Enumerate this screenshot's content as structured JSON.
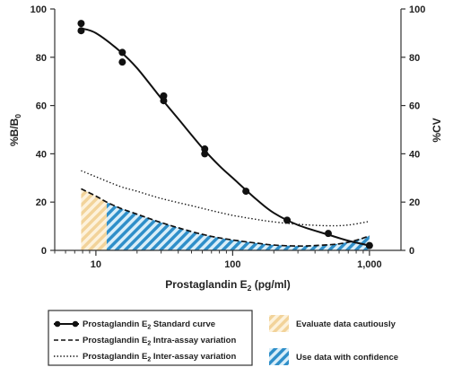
{
  "chart_data": {
    "type": "line",
    "xlabel": {
      "prefix": "Prostaglandin E",
      "sub": "2",
      "suffix": " (pg/ml)"
    },
    "ylabel_left": {
      "prefix": "%B/B",
      "sub": "0"
    },
    "ylabel_right": "%CV",
    "x_scale": "log",
    "xlim": [
      5,
      1700
    ],
    "x_ticks": [
      10,
      100,
      1000
    ],
    "x_tick_labels": [
      "10",
      "100",
      "1,000"
    ],
    "ylim": [
      0,
      100
    ],
    "y_ticks": [
      0,
      20,
      40,
      60,
      80,
      100
    ],
    "y_tick_labels": [
      "0",
      "20",
      "40",
      "60",
      "80",
      "100"
    ],
    "y2lim": [
      0,
      100
    ],
    "y2_ticks": [
      0,
      20,
      40,
      60,
      80,
      100
    ],
    "y2_tick_labels": [
      "0",
      "20",
      "40",
      "60",
      "80",
      "100"
    ],
    "grid": false,
    "series": [
      {
        "name": {
          "prefix": "Prostaglandin E",
          "sub": "2",
          "suffix": " Standard curve"
        },
        "style": "solid-markers",
        "axis": "left",
        "x": [
          7.8,
          7.8,
          15.6,
          15.6,
          31.3,
          31.3,
          62.5,
          62.5,
          125,
          250,
          500,
          1000
        ],
        "y": [
          94,
          91,
          82,
          78,
          64,
          62,
          42,
          40,
          24.5,
          12.5,
          7,
          2
        ],
        "curve_x": [
          7.8,
          10,
          15,
          20,
          30,
          40,
          60,
          80,
          100,
          150,
          200,
          300,
          500,
          700,
          1000
        ],
        "curve_y": [
          92,
          90,
          82.5,
          75.5,
          63,
          54.5,
          42.5,
          35,
          30,
          21,
          15.5,
          10.5,
          6.5,
          4,
          2
        ]
      },
      {
        "name": {
          "prefix": "Prostaglandin E",
          "sub": "2",
          "suffix": " Intra-assay variation"
        },
        "style": "dashed",
        "axis": "right",
        "x": [
          7.8,
          10,
          12,
          15,
          20,
          30,
          50,
          70,
          100,
          150,
          200,
          300,
          400,
          600,
          800,
          1000
        ],
        "y": [
          25.5,
          22.5,
          20,
          17.5,
          15,
          11.5,
          7.8,
          5.8,
          4.3,
          3,
          2.2,
          1.8,
          2,
          2.7,
          4.2,
          6
        ]
      },
      {
        "name": {
          "prefix": "Prostaglandin E",
          "sub": "2",
          "suffix": " Inter-assay variation"
        },
        "style": "dotted",
        "axis": "right",
        "x": [
          7.8,
          10,
          15,
          20,
          30,
          50,
          70,
          100,
          150,
          200,
          300,
          500,
          700,
          1000
        ],
        "y": [
          33,
          30.5,
          26.5,
          24.5,
          21.5,
          18.5,
          16.5,
          14.5,
          12.8,
          11.8,
          10.8,
          10.2,
          10.5,
          12
        ]
      }
    ],
    "regions": [
      {
        "name": "Evaluate data cautiously",
        "style": "tan-hatch",
        "x_from": 7.8,
        "x_to": 12
      },
      {
        "name": "Use data with confidence",
        "style": "blue-hatch",
        "x_from": 12,
        "x_to": 1000
      }
    ],
    "colors": {
      "line": "#111111",
      "tan": "#f2d39a",
      "tan_light": "#fdf2dc",
      "blue": "#2f8fc9",
      "blue_light": "#d9eef9"
    }
  }
}
